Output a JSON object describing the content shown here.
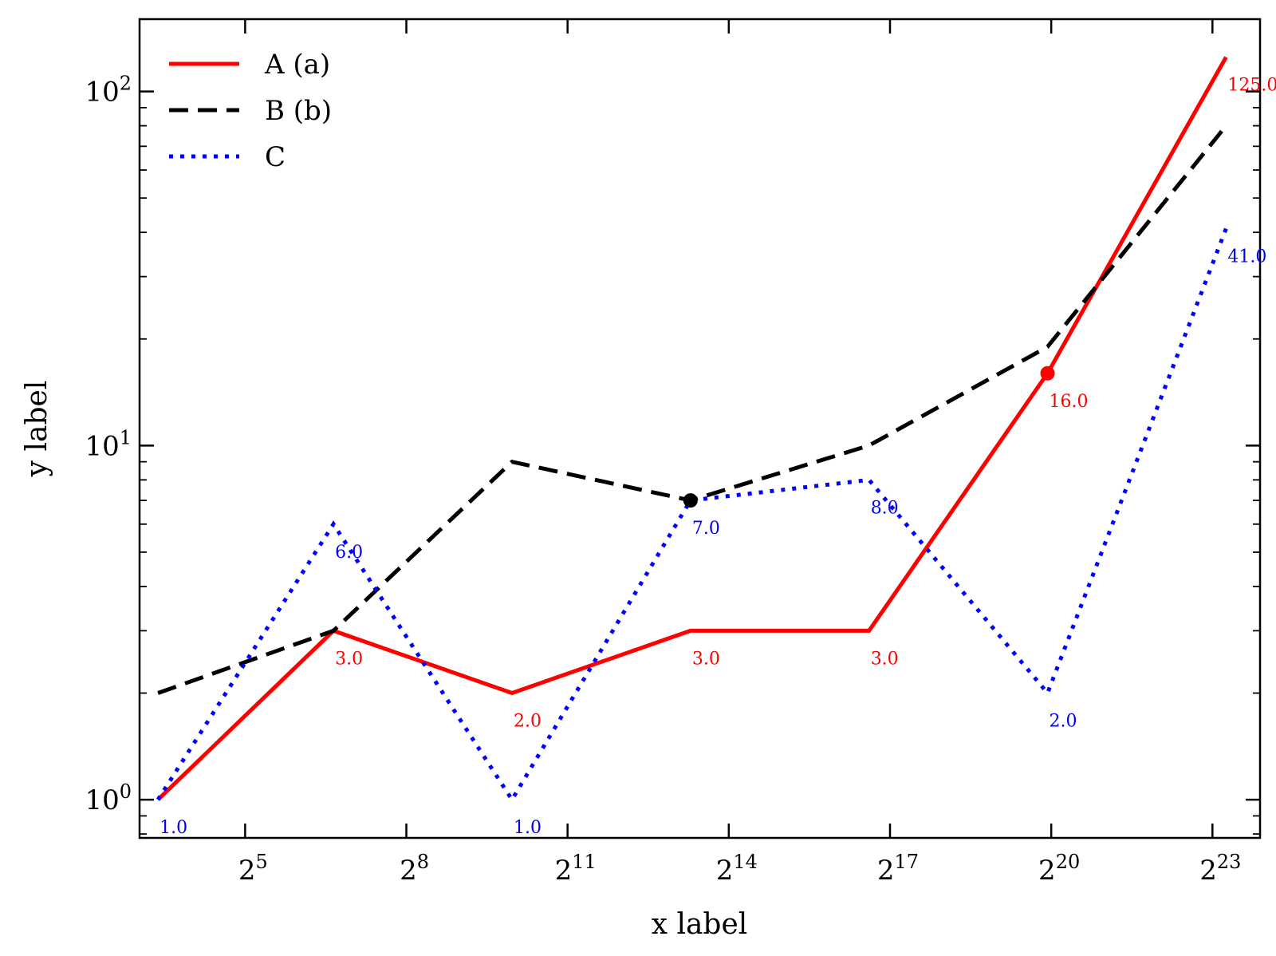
{
  "chart_data": {
    "type": "line",
    "xlabel": "x label",
    "ylabel": "y label",
    "xscale": "log2",
    "yscale": "log10",
    "xlim": [
      8.2,
      15500000
    ],
    "ylim": [
      0.78,
      160
    ],
    "x": [
      10.4,
      100,
      1000,
      10000,
      100000,
      1000000,
      10000000
    ],
    "x_ticks": [
      {
        "base": "2",
        "exp": "5",
        "value": 32
      },
      {
        "base": "2",
        "exp": "8",
        "value": 256
      },
      {
        "base": "2",
        "exp": "11",
        "value": 2048
      },
      {
        "base": "2",
        "exp": "14",
        "value": 16384
      },
      {
        "base": "2",
        "exp": "17",
        "value": 131072
      },
      {
        "base": "2",
        "exp": "20",
        "value": 1048576
      },
      {
        "base": "2",
        "exp": "23",
        "value": 8388608
      }
    ],
    "y_ticks": [
      {
        "base": "10",
        "exp": "0",
        "value": 1
      },
      {
        "base": "10",
        "exp": "1",
        "value": 10
      },
      {
        "base": "10",
        "exp": "2",
        "value": 100
      }
    ],
    "legend": {
      "position": "top-left"
    },
    "series": [
      {
        "name": "A (a)",
        "color": "#ff0000",
        "style": "solid",
        "values": [
          1,
          3,
          2,
          3,
          3,
          16,
          125
        ],
        "labels": [
          "",
          "3.0",
          "2.0",
          "3.0",
          "3.0",
          "16.0",
          "125.0"
        ],
        "marker_index": 5
      },
      {
        "name": "B (b)",
        "color": "#000000",
        "style": "dashed",
        "values": [
          2,
          3,
          9,
          7,
          10,
          19,
          80
        ],
        "labels": [
          "",
          "",
          "",
          "",
          "",
          "",
          ""
        ],
        "marker_index": 3
      },
      {
        "name": "C",
        "color": "#0000ff",
        "style": "dotted",
        "values": [
          1,
          6,
          1,
          7,
          8,
          2,
          41
        ],
        "labels": [
          "1.0",
          "6.0",
          "1.0",
          "7.0",
          "8.0",
          "2.0",
          "41.0"
        ],
        "marker_index": -1
      }
    ]
  }
}
